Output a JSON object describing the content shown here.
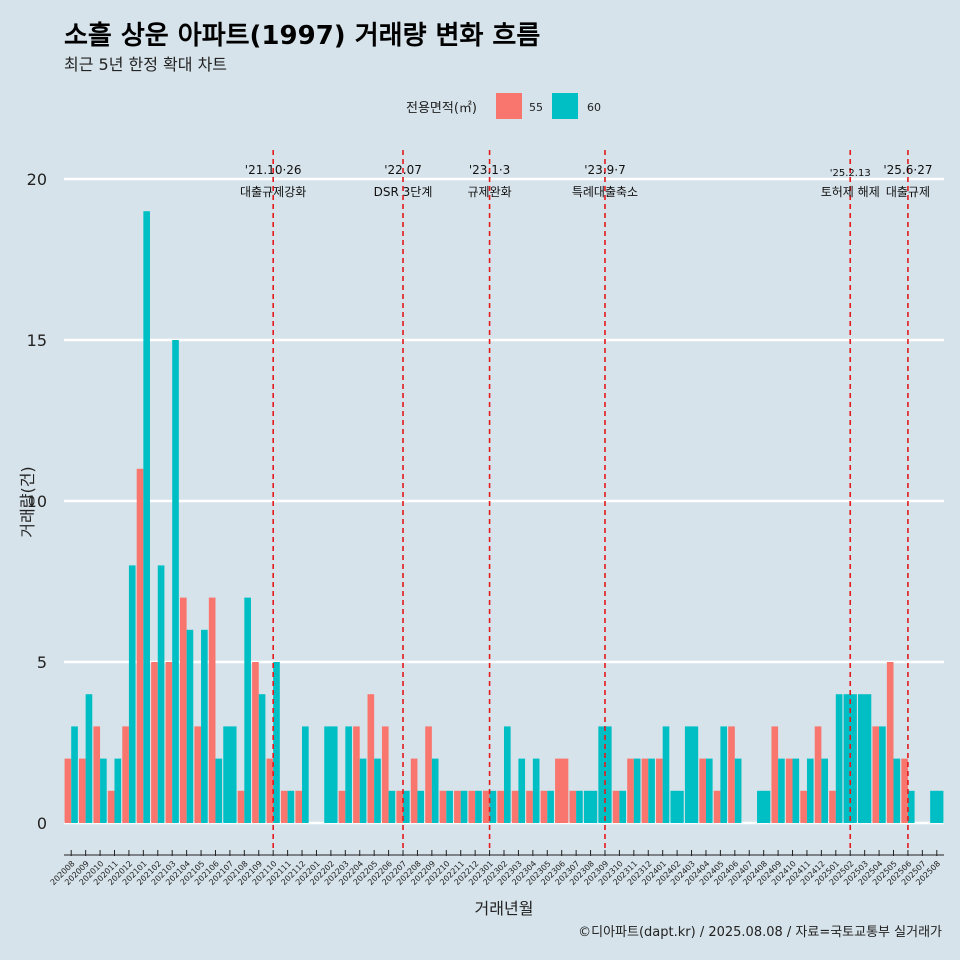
{
  "title": "소흘 상운 아파트(1997) 거래량 변화 흐름",
  "subtitle": "최근 5년 한정 확대 차트",
  "legend": {
    "title": "전용면적(㎡)",
    "items": [
      {
        "label": "55",
        "color": "#f8766d"
      },
      {
        "label": "60",
        "color": "#00bfc4"
      }
    ]
  },
  "caption": "©디아파트(dapt.kr) / 2025.08.08 / 자료=국토교통부 실거래가",
  "chart_data": {
    "type": "bar",
    "xlabel": "거래년월",
    "ylabel": "거래량(건)",
    "ylim": [
      0,
      20
    ],
    "yticks": [
      0,
      5,
      10,
      15,
      20
    ],
    "categories": [
      "202008",
      "202009",
      "202010",
      "202011",
      "202012",
      "202101",
      "202102",
      "202103",
      "202104",
      "202105",
      "202106",
      "202107",
      "202108",
      "202109",
      "202110",
      "202111",
      "202112",
      "202201",
      "202202",
      "202203",
      "202204",
      "202205",
      "202206",
      "202207",
      "202208",
      "202209",
      "202210",
      "202211",
      "202212",
      "202301",
      "202302",
      "202303",
      "202304",
      "202305",
      "202306",
      "202307",
      "202308",
      "202309",
      "202310",
      "202311",
      "202312",
      "202401",
      "202402",
      "202403",
      "202404",
      "202405",
      "202406",
      "202407",
      "202408",
      "202409",
      "202410",
      "202411",
      "202412",
      "202501",
      "202502",
      "202503",
      "202504",
      "202505",
      "202506",
      "202507",
      "202508"
    ],
    "series": [
      {
        "name": "55",
        "values": [
          2,
          2,
          3,
          1,
          3,
          11,
          5,
          5,
          7,
          3,
          7,
          0,
          1,
          5,
          2,
          1,
          1,
          0,
          0,
          1,
          3,
          4,
          3,
          1,
          2,
          3,
          1,
          1,
          1,
          1,
          1,
          1,
          1,
          1,
          2,
          1,
          0,
          0,
          1,
          2,
          2,
          2,
          0,
          0,
          2,
          1,
          3,
          0,
          0,
          3,
          2,
          1,
          3,
          1,
          0,
          0,
          3,
          5,
          2,
          0,
          0
        ]
      },
      {
        "name": "60",
        "values": [
          3,
          4,
          2,
          2,
          8,
          19,
          8,
          15,
          6,
          6,
          2,
          3,
          7,
          4,
          5,
          1,
          3,
          0,
          3,
          3,
          2,
          2,
          1,
          1,
          1,
          2,
          1,
          1,
          1,
          1,
          3,
          2,
          2,
          1,
          0,
          1,
          1,
          3,
          1,
          2,
          2,
          3,
          1,
          3,
          2,
          3,
          2,
          0,
          1,
          2,
          2,
          2,
          2,
          4,
          4,
          4,
          3,
          2,
          1,
          0,
          1
        ]
      }
    ],
    "full_bar_months": [
      "202107",
      "202201",
      "202202",
      "202208",
      "202306",
      "202307",
      "202308",
      "202309",
      "202310",
      "202312",
      "202402",
      "202403",
      "202404",
      "202407",
      "202408",
      "202502",
      "202503",
      "202504",
      "202507",
      "202508"
    ],
    "events": [
      {
        "month": "202110",
        "date": "'21.10·26",
        "label": "대출규제강화"
      },
      {
        "month": "202207",
        "date": "'22.07",
        "label": "DSR 3단계"
      },
      {
        "month": "202301",
        "date": "'23.1·3",
        "label": "규제완화"
      },
      {
        "month": "202309",
        "date": "'23.9·7",
        "label": "특례대출축소"
      },
      {
        "month": "202502",
        "date": "'25.2.13",
        "label": "토허제 해제"
      },
      {
        "month": "202506",
        "date": "'25.6·27",
        "label": "대출규제"
      }
    ]
  }
}
